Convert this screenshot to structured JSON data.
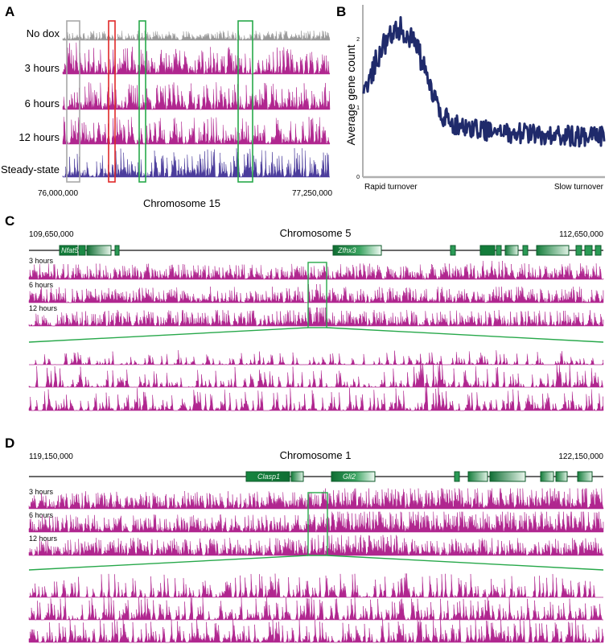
{
  "panel_a": {
    "letter": "A",
    "track_labels": [
      "No dox",
      "3 hours",
      "6 hours",
      "12 hours",
      "Steady-state"
    ],
    "axis_start": "76,000,000",
    "axis_end": "77,250,000",
    "axis_title": "Chromosome 15",
    "colors": {
      "no_dox": "#9a9a9a",
      "timepoint": "#b0268f",
      "steady_state": "#4b3c9c",
      "box_gray": "#a8a8a8",
      "box_red": "#e02828",
      "box_green": "#27a84a"
    }
  },
  "panel_b": {
    "letter": "B",
    "chart_data": {
      "type": "line",
      "ylabel": "Average gene count",
      "xlabel_left": "Rapid turnover",
      "xlabel_right": "Slow turnover",
      "yticks": [
        "0",
        "1",
        "2"
      ],
      "ylim": [
        0,
        2.55
      ],
      "color": "#1f2a6b",
      "n_points": 300,
      "profile": [
        1.2,
        1.75,
        2.1,
        2.2,
        2.05,
        1.45,
        0.95,
        0.8,
        0.72,
        0.7,
        0.68,
        0.66,
        0.65,
        0.64,
        0.63,
        0.62,
        0.61,
        0.6,
        0.6,
        0.6
      ]
    }
  },
  "panel_c": {
    "letter": "C",
    "coord_start": "109,650,000",
    "coord_end": "112,650,000",
    "chromosome": "Chromosome 5",
    "genes": [
      "Nfat5",
      "Zfhx3"
    ],
    "track_labels": [
      "3 hours",
      "6 hours",
      "12 hours"
    ]
  },
  "panel_d": {
    "letter": "D",
    "coord_start": "119,150,000",
    "coord_end": "122,150,000",
    "chromosome": "Chromosome 1",
    "genes": [
      "Clasp1",
      "Gli2"
    ],
    "track_labels": [
      "3 hours",
      "6 hours",
      "12 hours"
    ]
  }
}
